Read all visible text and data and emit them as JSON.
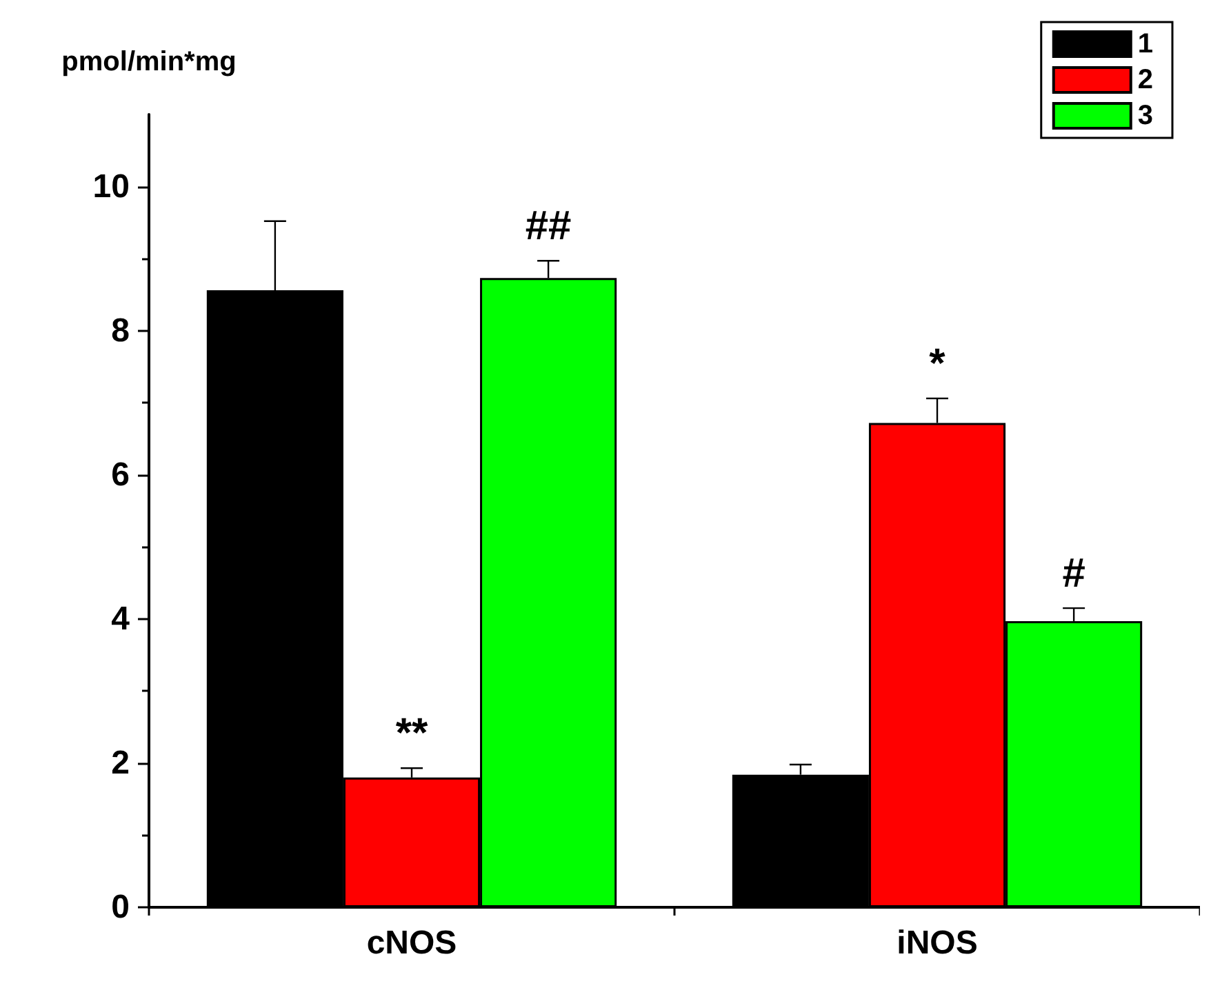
{
  "chart_data": {
    "type": "bar",
    "ylabel": "pmol/min*mg",
    "categories": [
      "cNOS",
      "iNOS"
    ],
    "series": [
      {
        "name": "1",
        "color": "#000000",
        "values": [
          8.56,
          1.84
        ],
        "errors": [
          0.96,
          0.14
        ]
      },
      {
        "name": "2",
        "color": "#ff0000",
        "values": [
          1.8,
          6.72
        ],
        "errors": [
          0.13,
          0.34
        ],
        "value_labels": [
          "**",
          "*"
        ]
      },
      {
        "name": "3",
        "color": "#00ff00",
        "values": [
          8.73,
          3.97
        ],
        "errors": [
          0.24,
          0.18
        ],
        "value_labels": [
          "##",
          "#"
        ]
      }
    ],
    "ylim": [
      0,
      11
    ],
    "yticks": [
      0,
      2,
      4,
      6,
      8,
      10
    ],
    "grid": false,
    "legend": "top right"
  }
}
